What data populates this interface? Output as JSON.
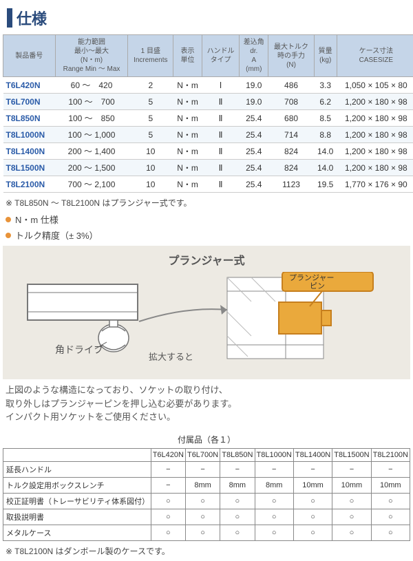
{
  "title": "仕様",
  "spec": {
    "headers": [
      "製品番号",
      "能力範囲\n最小～最大\n(N・m)\nRange Min ～ Max",
      "1 目盛\nIncrements",
      "表示\n単位",
      "ハンドル\nタイプ",
      "差込角\ndr.\nA\n(mm)",
      "最大トルク\n時の手力\n(N)",
      "質量\n(kg)",
      "ケース寸法\nCASESIZE"
    ],
    "rows": [
      {
        "pn": "T6L420N",
        "range": "60 ～　420",
        "inc": "2",
        "unit": "N・m",
        "h": "Ⅰ",
        "a": "19.0",
        "f": "486",
        "w": "3.3",
        "case": "1,050 × 105 × 80"
      },
      {
        "pn": "T6L700N",
        "range": "100 ～　700",
        "inc": "5",
        "unit": "N・m",
        "h": "Ⅱ",
        "a": "19.0",
        "f": "708",
        "w": "6.2",
        "case": "1,200 × 180 × 98"
      },
      {
        "pn": "T8L850N",
        "range": "100 ～　850",
        "inc": "5",
        "unit": "N・m",
        "h": "Ⅱ",
        "a": "25.4",
        "f": "680",
        "w": "8.5",
        "case": "1,200 × 180 × 98"
      },
      {
        "pn": "T8L1000N",
        "range": "100 ～ 1,000",
        "inc": "5",
        "unit": "N・m",
        "h": "Ⅱ",
        "a": "25.4",
        "f": "714",
        "w": "8.8",
        "case": "1,200 × 180 × 98"
      },
      {
        "pn": "T8L1400N",
        "range": "200 ～ 1,400",
        "inc": "10",
        "unit": "N・m",
        "h": "Ⅱ",
        "a": "25.4",
        "f": "824",
        "w": "14.0",
        "case": "1,200 × 180 × 98"
      },
      {
        "pn": "T8L1500N",
        "range": "200 ～ 1,500",
        "inc": "10",
        "unit": "N・m",
        "h": "Ⅱ",
        "a": "25.4",
        "f": "824",
        "w": "14.0",
        "case": "1,200 × 180 × 98"
      },
      {
        "pn": "T8L2100N",
        "range": "700 ～ 2,100",
        "inc": "10",
        "unit": "N・m",
        "h": "Ⅱ",
        "a": "25.4",
        "f": "1123",
        "w": "19.5",
        "case": "1,770 × 176 × 90"
      }
    ]
  },
  "note1": "※ T8L850N ～ T8L2100N はプランジャー式です。",
  "bullets": [
    "N・m 仕様",
    "トルク精度（± 3%）"
  ],
  "diagram": {
    "title": "プランジャー式",
    "label_pin": "プランジャー\nピン",
    "label_drive": "角ドライブ",
    "label_zoom": "拡大すると",
    "colors": {
      "pin": "#eaa93c",
      "pin_border": "#c67f1e",
      "body": "#ffffff",
      "line": "#777",
      "bg": "#edeae3"
    }
  },
  "explain": "上図のような構造になっており、ソケットの取り付け、\n取り外しはプランジャーピンを押し込む必要があります。\nインパクト用ソケットをご使用ください。",
  "acc": {
    "title": "付属品（各１）",
    "cols": [
      "",
      "T6L420N",
      "T6L700N",
      "T8L850N",
      "T8L1000N",
      "T8L1400N",
      "T8L1500N",
      "T8L2100N"
    ],
    "rows": [
      [
        "延長ハンドル",
        "−",
        "−",
        "−",
        "−",
        "−",
        "−",
        "−"
      ],
      [
        "トルク設定用ボックスレンチ",
        "−",
        "8mm",
        "8mm",
        "8mm",
        "10mm",
        "10mm",
        "10mm"
      ],
      [
        "校正証明書（トレーサビリティ体系図付）",
        "○",
        "○",
        "○",
        "○",
        "○",
        "○",
        "○"
      ],
      [
        "取扱説明書",
        "○",
        "○",
        "○",
        "○",
        "○",
        "○",
        "○"
      ],
      [
        "メタルケース",
        "○",
        "○",
        "○",
        "○",
        "○",
        "○",
        "○"
      ]
    ]
  },
  "note2": "※ T8L2100N はダンボール製のケースです。"
}
